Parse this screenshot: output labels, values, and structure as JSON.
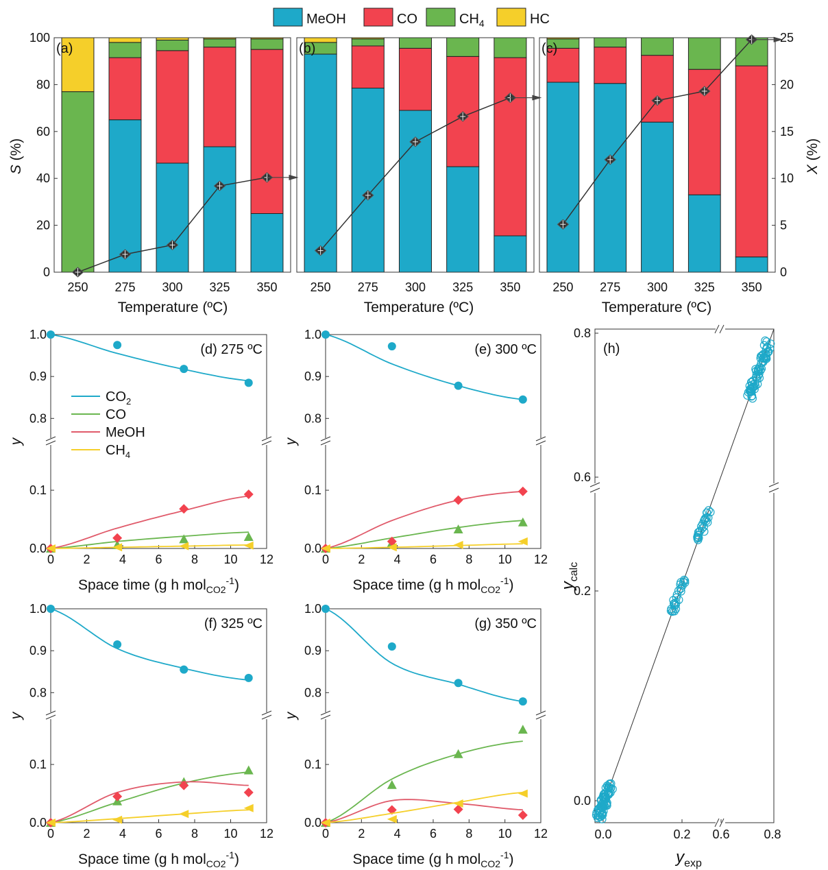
{
  "legend": {
    "items": [
      {
        "label": "MeOH",
        "color": "#1ea9c9"
      },
      {
        "label": "CO",
        "color": "#f2434f"
      },
      {
        "label": "CH",
        "sub": "4",
        "color": "#6ab64f"
      },
      {
        "label": "HC",
        "color": "#f5cf2a"
      }
    ]
  },
  "colors": {
    "meoh": "#1ea9c9",
    "co": "#f2434f",
    "ch4": "#6ab64f",
    "hc": "#f5cf2a",
    "conv": "#333333"
  },
  "top_axes": {
    "ylabel_left_italic": "S",
    "ylabel_left_rest": " (%)",
    "ylabel_right_italic": "X",
    "ylabel_right_rest": " (%)",
    "xlabel": "Temperature (ºC)",
    "left_ticks": [
      "0",
      "20",
      "40",
      "60",
      "80",
      "100"
    ],
    "right_ticks": [
      "0",
      "5",
      "10",
      "15",
      "20",
      "25"
    ],
    "categories": [
      "250",
      "275",
      "300",
      "325",
      "350"
    ]
  },
  "kinetic_axes": {
    "ylabel": "y",
    "xlabel_main": "Space time (g h mol",
    "xlabel_sub": "CO2",
    "xlabel_sup": "-1",
    "xlabel_close": ")",
    "x_ticks": [
      "0",
      "2",
      "4",
      "6",
      "8",
      "10",
      "12"
    ],
    "upper_ticks": [
      "0.8",
      "0.9",
      "1.0"
    ],
    "lower_ticks": [
      "0.0",
      "0.1"
    ]
  },
  "kinetic_legend": [
    {
      "label": "CO",
      "sub": "2",
      "color": "#1ea9c9"
    },
    {
      "label": "CO",
      "sub": "",
      "color": "#6ab64f"
    },
    {
      "label": "MeOH",
      "sub": "",
      "color": "#e05a6a"
    },
    {
      "label": "CH",
      "sub": "4",
      "color": "#f5cf2a"
    }
  ],
  "parity_axes": {
    "ylabel_main": "y",
    "ylabel_sub": "calc",
    "xlabel_main": "y",
    "xlabel_sub": "exp",
    "y_ticks": [
      "0.0",
      "0.2",
      "0.6",
      "0.8"
    ],
    "x_ticks": [
      "0.0",
      "0.2",
      "0.6",
      "0.8"
    ]
  },
  "chart_data": [
    {
      "type": "bar",
      "panel": "(a)",
      "stacked": true,
      "categories": [
        "250",
        "275",
        "300",
        "325",
        "350"
      ],
      "series": [
        {
          "name": "MeOH",
          "values": [
            0,
            65,
            46.5,
            53.5,
            25
          ]
        },
        {
          "name": "CO",
          "values": [
            0,
            26.5,
            48,
            42.5,
            70
          ]
        },
        {
          "name": "CH4",
          "values": [
            77,
            6.5,
            4.5,
            3.5,
            4.5
          ]
        },
        {
          "name": "HC",
          "values": [
            23,
            2,
            1,
            0.5,
            0.5
          ]
        }
      ],
      "conversion": [
        0,
        1.9,
        2.9,
        9.2,
        10.1
      ],
      "ylim": [
        0,
        100
      ],
      "y2lim": [
        0,
        25
      ],
      "xlabel": "Temperature (ºC)"
    },
    {
      "type": "bar",
      "panel": "(b)",
      "stacked": true,
      "categories": [
        "250",
        "275",
        "300",
        "325",
        "350"
      ],
      "series": [
        {
          "name": "MeOH",
          "values": [
            93,
            78.5,
            69,
            45,
            15.5
          ]
        },
        {
          "name": "CO",
          "values": [
            0,
            18,
            26.5,
            47,
            76
          ]
        },
        {
          "name": "CH4",
          "values": [
            5,
            3,
            4.5,
            8,
            8.5
          ]
        },
        {
          "name": "HC",
          "values": [
            2,
            0.5,
            0,
            0,
            0
          ]
        }
      ],
      "conversion": [
        2.3,
        8.2,
        13.9,
        16.6,
        18.6
      ],
      "ylim": [
        0,
        100
      ],
      "y2lim": [
        0,
        25
      ],
      "xlabel": "Temperature (ºC)"
    },
    {
      "type": "bar",
      "panel": "(c)",
      "stacked": true,
      "categories": [
        "250",
        "275",
        "300",
        "325",
        "350"
      ],
      "series": [
        {
          "name": "MeOH",
          "values": [
            81,
            80.5,
            64,
            33,
            6.5
          ]
        },
        {
          "name": "CO",
          "values": [
            14.5,
            15.5,
            28.5,
            53.5,
            81.5
          ]
        },
        {
          "name": "CH4",
          "values": [
            4,
            4,
            7.5,
            13.5,
            12
          ]
        },
        {
          "name": "HC",
          "values": [
            0.5,
            0,
            0,
            0,
            0
          ]
        }
      ],
      "conversion": [
        5.1,
        12,
        18.3,
        19.3,
        24.8
      ],
      "ylim": [
        0,
        100
      ],
      "y2lim": [
        0,
        25
      ],
      "xlabel": "Temperature (ºC)"
    },
    {
      "type": "line",
      "panel": "(d) 275 ºC",
      "x": [
        0,
        3.7,
        7.4,
        11
      ],
      "series": [
        {
          "name": "CO2",
          "points": [
            1.0,
            0.975,
            0.918,
            0.885
          ],
          "curve": [
            1.0,
            0.955,
            0.917,
            0.89
          ]
        },
        {
          "name": "CO",
          "points": [
            0,
            0.006,
            0.016,
            0.02
          ],
          "curve": [
            0,
            0.012,
            0.021,
            0.028
          ]
        },
        {
          "name": "MeOH",
          "points": [
            0,
            0.018,
            0.068,
            0.093
          ],
          "curve": [
            0,
            0.035,
            0.065,
            0.09
          ]
        },
        {
          "name": "CH4",
          "points": [
            0,
            0.002,
            0.004,
            0.005
          ],
          "curve": [
            0,
            0.002,
            0.004,
            0.006
          ]
        }
      ],
      "xlim": [
        0,
        12
      ]
    },
    {
      "type": "line",
      "panel": "(e) 300 ºC",
      "x": [
        0,
        3.7,
        7.4,
        11
      ],
      "series": [
        {
          "name": "CO2",
          "points": [
            1.0,
            0.972,
            0.878,
            0.845
          ],
          "curve": [
            1.0,
            0.93,
            0.878,
            0.845
          ]
        },
        {
          "name": "CO",
          "points": [
            0,
            0.01,
            0.033,
            0.045
          ],
          "curve": [
            0,
            0.018,
            0.036,
            0.048
          ]
        },
        {
          "name": "MeOH",
          "points": [
            0,
            0.012,
            0.083,
            0.098
          ],
          "curve": [
            0,
            0.048,
            0.083,
            0.098
          ]
        },
        {
          "name": "CH4",
          "points": [
            0,
            0.002,
            0.006,
            0.012
          ],
          "curve": [
            0,
            0.002,
            0.005,
            0.008
          ]
        }
      ],
      "xlim": [
        0,
        12
      ]
    },
    {
      "type": "line",
      "panel": "(f) 325 ºC",
      "x": [
        0,
        3.7,
        7.4,
        11
      ],
      "series": [
        {
          "name": "CO2",
          "points": [
            1.0,
            0.915,
            0.855,
            0.835
          ],
          "curve": [
            1.0,
            0.905,
            0.858,
            0.83
          ]
        },
        {
          "name": "CO",
          "points": [
            0,
            0.037,
            0.07,
            0.09
          ],
          "curve": [
            0,
            0.035,
            0.068,
            0.087
          ]
        },
        {
          "name": "MeOH",
          "points": [
            0,
            0.045,
            0.064,
            0.052
          ],
          "curve": [
            0,
            0.052,
            0.07,
            0.064
          ]
        },
        {
          "name": "CH4",
          "points": [
            0,
            0.005,
            0.015,
            0.025
          ],
          "curve": [
            0,
            0.007,
            0.015,
            0.022
          ]
        }
      ],
      "xlim": [
        0,
        12
      ]
    },
    {
      "type": "line",
      "panel": "(g) 350 ºC",
      "x": [
        0,
        3.7,
        7.4,
        11
      ],
      "series": [
        {
          "name": "CO2",
          "points": [
            1.0,
            0.91,
            0.823,
            0.779
          ],
          "curve": [
            1.0,
            0.87,
            0.82,
            0.779
          ]
        },
        {
          "name": "CO",
          "points": [
            0,
            0.065,
            0.118,
            0.16
          ],
          "curve": [
            0,
            0.075,
            0.118,
            0.14
          ]
        },
        {
          "name": "MeOH",
          "points": [
            0,
            0.022,
            0.023,
            0.013
          ],
          "curve": [
            0,
            0.038,
            0.033,
            0.022
          ]
        },
        {
          "name": "CH4",
          "points": [
            0,
            0.006,
            0.033,
            0.05
          ],
          "curve": [
            0,
            0.016,
            0.035,
            0.052
          ]
        }
      ],
      "xlim": [
        0,
        12
      ]
    },
    {
      "type": "scatter",
      "panel": "(h)",
      "description_free": true,
      "clusters": [
        {
          "y_exp": [
            0.0,
            0.03
          ],
          "n": 60
        },
        {
          "y_exp": [
            0.17,
            0.22
          ],
          "n": 30
        },
        {
          "y_exp": [
            0.24,
            0.27
          ],
          "n": 25
        },
        {
          "y_exp": [
            0.66,
            0.78
          ],
          "n": 70
        }
      ],
      "xlim": [
        0,
        0.8
      ],
      "ylim": [
        0,
        0.8
      ]
    }
  ]
}
